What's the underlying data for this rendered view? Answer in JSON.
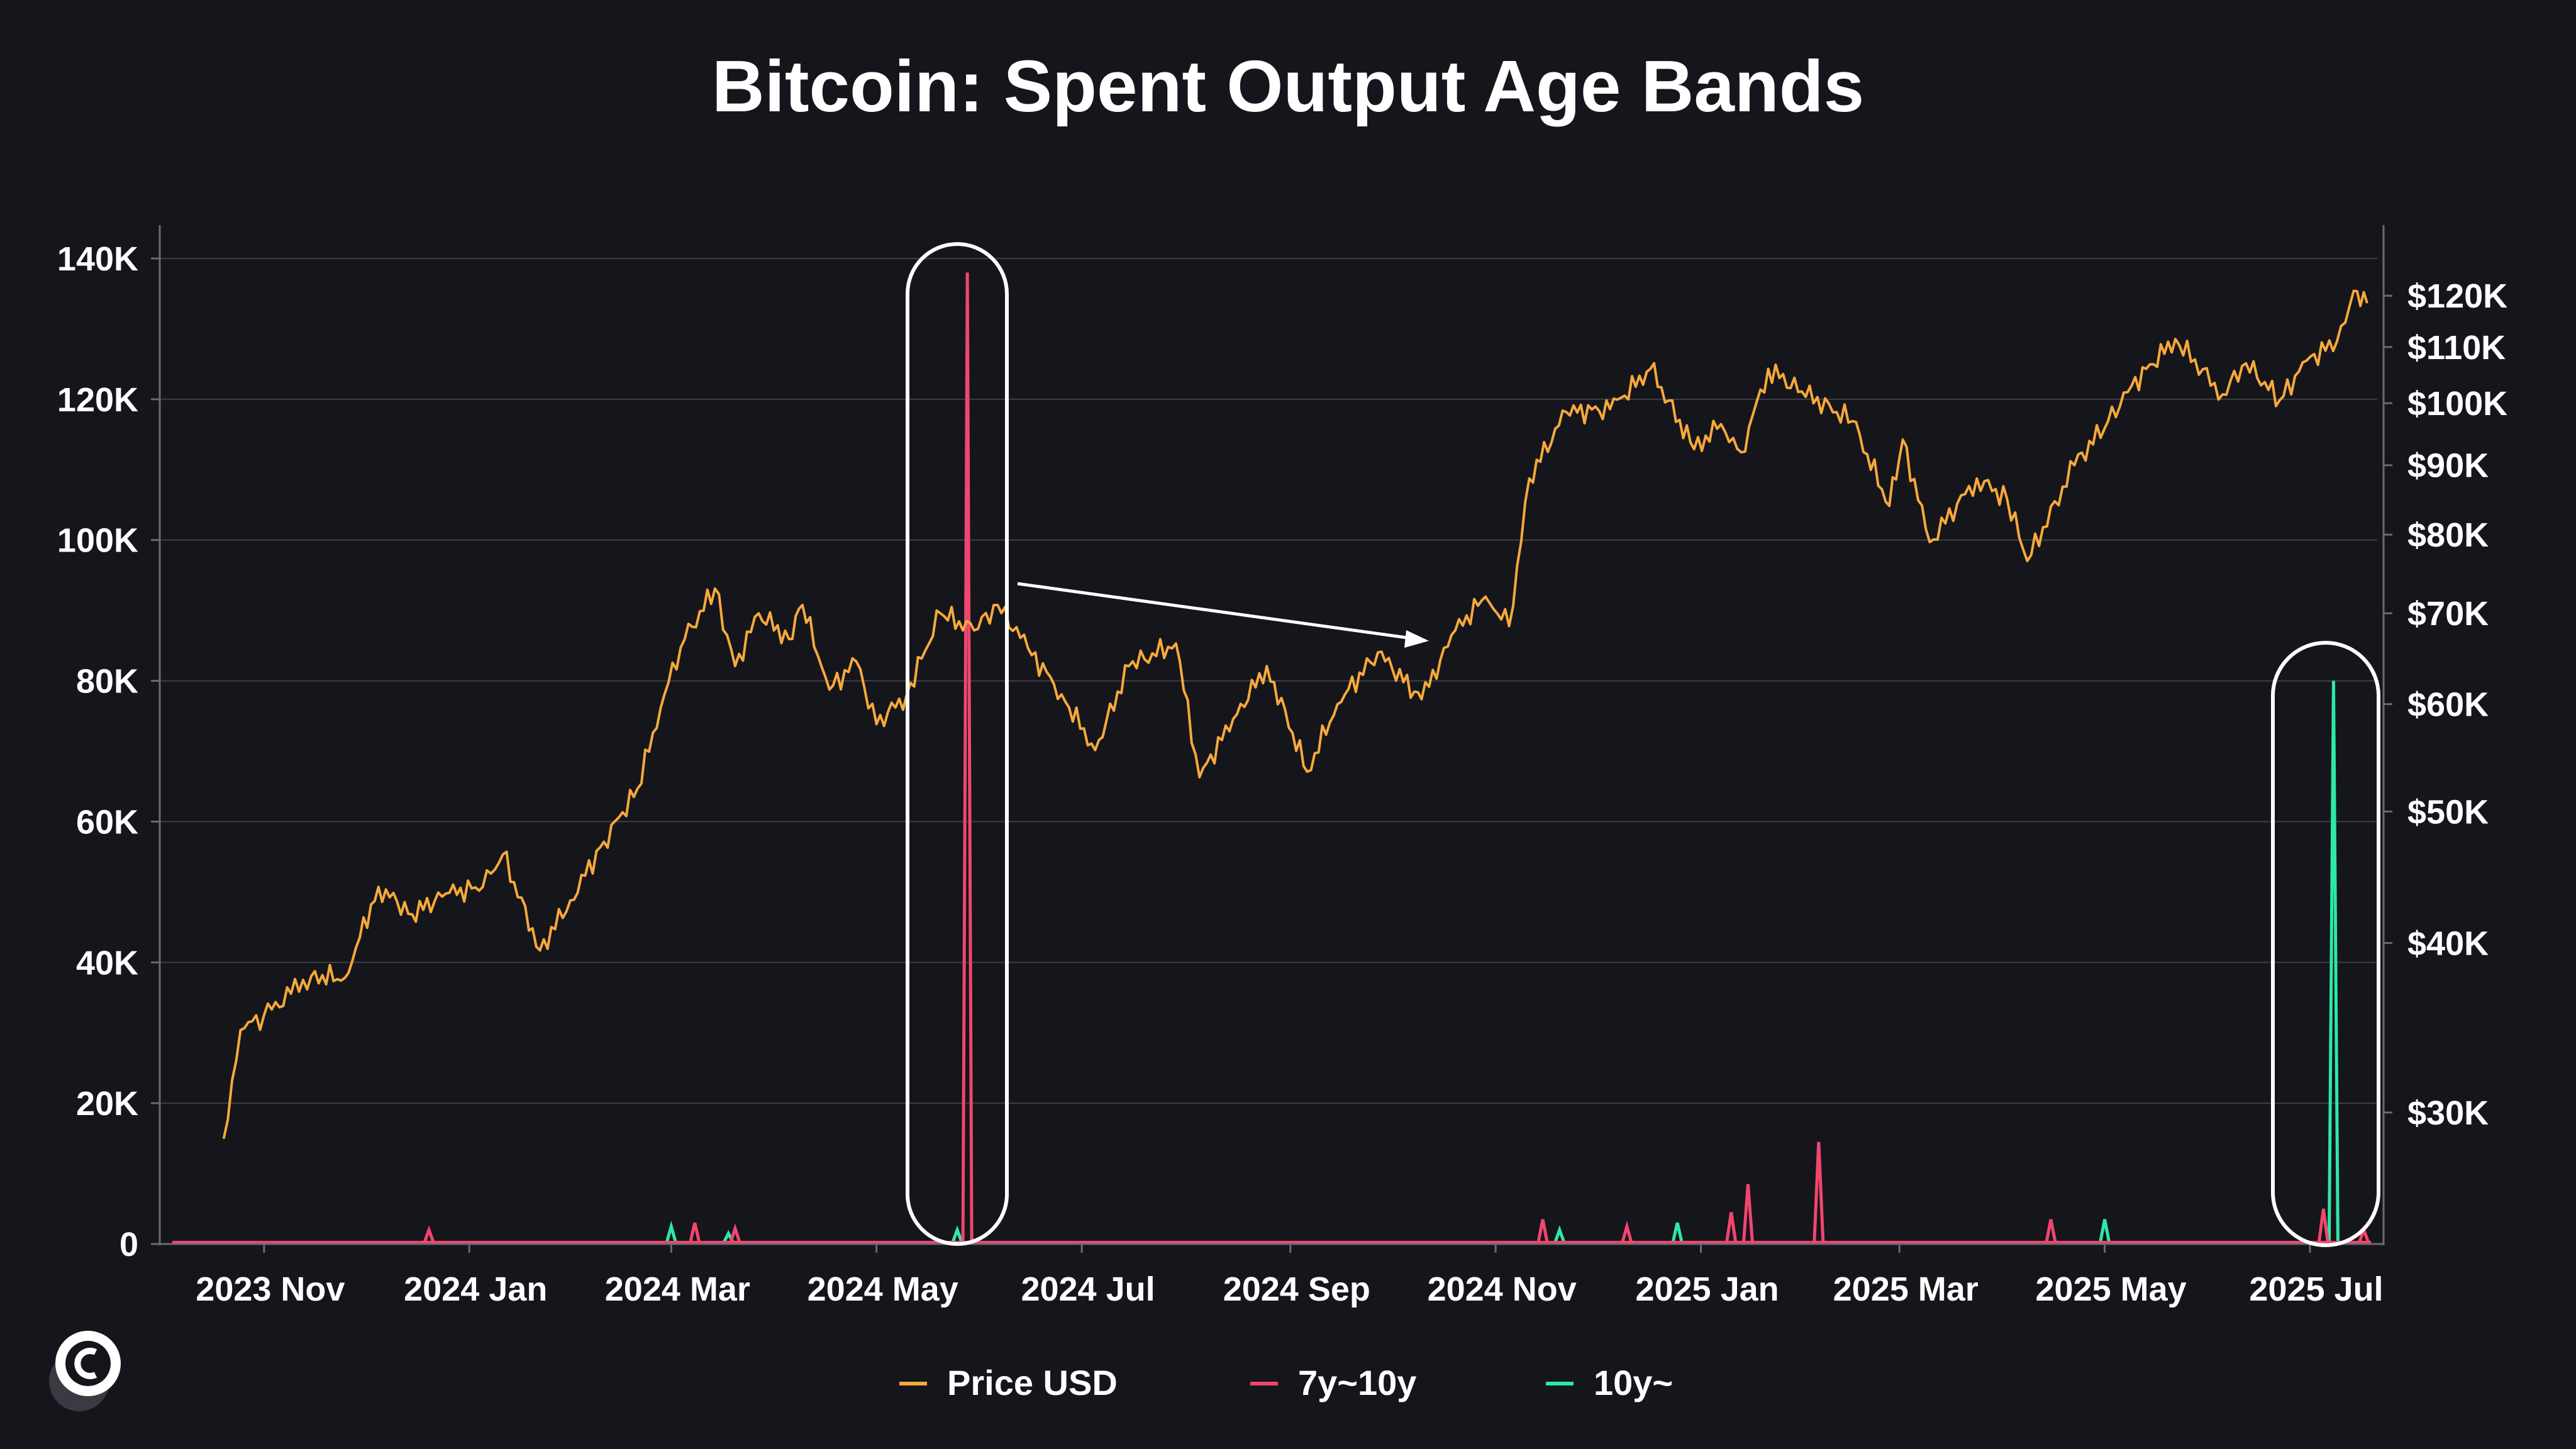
{
  "chart_data": {
    "type": "line",
    "title": "Bitcoin: Spent Output Age Bands",
    "x_ticks": [
      "2023 Nov",
      "2024 Jan",
      "2024 Mar",
      "2024 May",
      "2024 Jul",
      "2024 Sep",
      "2024 Nov",
      "2025 Jan",
      "2025 Mar",
      "2025 May",
      "2025 Jul"
    ],
    "y_left": {
      "ticks": [
        "0",
        "20K",
        "40K",
        "60K",
        "80K",
        "100K",
        "120K",
        "140K"
      ],
      "range": [
        0,
        140000
      ]
    },
    "y_right": {
      "ticks": [
        "$30K",
        "$40K",
        "$50K",
        "$60K",
        "$70K",
        "$80K",
        "$90K",
        "$100K",
        "$110K",
        "$120K"
      ],
      "scale": "log",
      "range": [
        24000,
        125000
      ]
    },
    "grid": true,
    "legend_position": "bottom",
    "series": [
      {
        "name": "Price USD",
        "axis": "right",
        "color": "#f6a93b",
        "points": [
          [
            "2023-10-20",
            28700
          ],
          [
            "2023-10-25",
            34500
          ],
          [
            "2023-11-01",
            35400
          ],
          [
            "2023-11-09",
            36700
          ],
          [
            "2023-11-15",
            37800
          ],
          [
            "2023-11-25",
            37700
          ],
          [
            "2023-12-05",
            44000
          ],
          [
            "2023-12-15",
            42000
          ],
          [
            "2023-12-25",
            43500
          ],
          [
            "2024-01-05",
            44000
          ],
          [
            "2024-01-11",
            46500
          ],
          [
            "2024-01-22",
            39500
          ],
          [
            "2024-01-31",
            43000
          ],
          [
            "2024-02-10",
            47500
          ],
          [
            "2024-02-20",
            52000
          ],
          [
            "2024-02-28",
            61000
          ],
          [
            "2024-03-05",
            67000
          ],
          [
            "2024-03-14",
            73000
          ],
          [
            "2024-03-20",
            64000
          ],
          [
            "2024-03-27",
            70000
          ],
          [
            "2024-04-05",
            67000
          ],
          [
            "2024-04-09",
            71000
          ],
          [
            "2024-04-17",
            61500
          ],
          [
            "2024-04-25",
            64500
          ],
          [
            "2024-05-01",
            58000
          ],
          [
            "2024-05-10",
            61000
          ],
          [
            "2024-05-20",
            70000
          ],
          [
            "2024-05-30",
            68000
          ],
          [
            "2024-06-06",
            71000
          ],
          [
            "2024-06-15",
            66000
          ],
          [
            "2024-06-25",
            61000
          ],
          [
            "2024-07-05",
            55500
          ],
          [
            "2024-07-15",
            64000
          ],
          [
            "2024-07-29",
            66500
          ],
          [
            "2024-08-05",
            53000
          ],
          [
            "2024-08-15",
            58500
          ],
          [
            "2024-08-25",
            64000
          ],
          [
            "2024-09-06",
            53500
          ],
          [
            "2024-09-15",
            60000
          ],
          [
            "2024-09-27",
            65500
          ],
          [
            "2024-10-10",
            60500
          ],
          [
            "2024-10-20",
            68000
          ],
          [
            "2024-10-29",
            72000
          ],
          [
            "2024-11-05",
            68500
          ],
          [
            "2024-11-11",
            88000
          ],
          [
            "2024-11-22",
            98500
          ],
          [
            "2024-12-05",
            99000
          ],
          [
            "2024-12-17",
            106000
          ],
          [
            "2024-12-30",
            92500
          ],
          [
            "2025-01-07",
            96500
          ],
          [
            "2025-01-13",
            92000
          ],
          [
            "2025-01-21",
            106000
          ],
          [
            "2025-01-31",
            102000
          ],
          [
            "2025-02-15",
            97000
          ],
          [
            "2025-02-26",
            84000
          ],
          [
            "2025-03-02",
            94000
          ],
          [
            "2025-03-10",
            79000
          ],
          [
            "2025-03-24",
            88000
          ],
          [
            "2025-04-02",
            85000
          ],
          [
            "2025-04-08",
            76500
          ],
          [
            "2025-04-22",
            90000
          ],
          [
            "2025-05-02",
            97000
          ],
          [
            "2025-05-09",
            103000
          ],
          [
            "2025-05-22",
            111500
          ],
          [
            "2025-06-05",
            101500
          ],
          [
            "2025-06-12",
            107000
          ],
          [
            "2025-06-22",
            100500
          ],
          [
            "2025-06-30",
            107500
          ],
          [
            "2025-07-09",
            111000
          ],
          [
            "2025-07-14",
            121000
          ],
          [
            "2025-07-18",
            118500
          ]
        ]
      },
      {
        "name": "7y~10y",
        "axis": "left",
        "color": "#f0466e",
        "points": [
          [
            "2023-12-20",
            2000
          ],
          [
            "2024-03-08",
            3000
          ],
          [
            "2024-03-20",
            2200
          ],
          [
            "2024-05-28",
            138000
          ],
          [
            "2024-11-15",
            3500
          ],
          [
            "2024-12-10",
            2500
          ],
          [
            "2025-01-10",
            4500
          ],
          [
            "2025-01-15",
            8500
          ],
          [
            "2025-02-05",
            14500
          ],
          [
            "2025-04-15",
            3500
          ],
          [
            "2025-07-05",
            5000
          ],
          [
            "2025-07-17",
            2000
          ]
        ]
      },
      {
        "name": "10y~",
        "axis": "left",
        "color": "#2de8a6",
        "points": [
          [
            "2024-03-01",
            2500
          ],
          [
            "2024-03-18",
            1500
          ],
          [
            "2024-05-25",
            2000
          ],
          [
            "2024-11-20",
            2000
          ],
          [
            "2024-12-25",
            3000
          ],
          [
            "2025-05-01",
            3500
          ],
          [
            "2025-07-08",
            80000
          ]
        ]
      }
    ]
  },
  "icons": {
    "logo": "coinglass-style-c-logo"
  }
}
